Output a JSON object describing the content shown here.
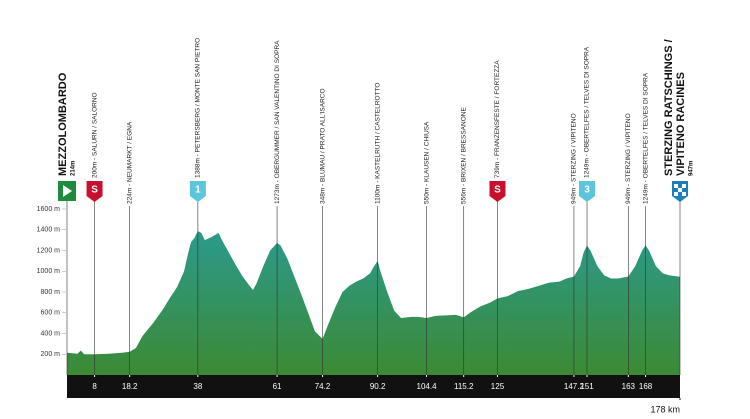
{
  "chart_data": {
    "type": "area",
    "x": [
      0,
      3,
      4,
      5,
      8,
      12,
      16,
      18.2,
      20,
      22,
      25,
      28,
      30,
      32,
      34,
      35,
      36,
      37,
      38,
      39,
      40,
      42,
      44,
      45,
      47,
      49,
      51,
      53,
      54,
      55,
      57,
      59,
      61,
      62,
      64,
      66,
      68,
      70,
      72,
      74.2,
      76,
      78,
      80,
      82,
      84,
      86,
      88,
      89,
      90.2,
      91,
      93,
      95,
      97,
      100,
      102,
      104.4,
      107,
      110,
      113,
      115.2,
      117,
      120,
      123,
      125,
      128,
      131,
      134,
      137,
      140,
      143,
      145,
      147.2,
      149,
      150,
      151,
      152,
      154,
      156,
      158,
      160,
      163,
      165,
      167,
      168,
      169,
      171,
      173,
      175,
      178
    ],
    "values": [
      214,
      205,
      235,
      200,
      200,
      205,
      215,
      224,
      260,
      380,
      500,
      640,
      750,
      850,
      1000,
      1150,
      1280,
      1320,
      1388,
      1370,
      1300,
      1330,
      1370,
      1300,
      1180,
      1060,
      950,
      860,
      820,
      880,
      1050,
      1200,
      1273,
      1250,
      1120,
      950,
      780,
      600,
      420,
      348,
      500,
      660,
      800,
      860,
      900,
      930,
      980,
      1040,
      1100,
      1000,
      800,
      620,
      550,
      560,
      560,
      550,
      570,
      575,
      580,
      556,
      600,
      660,
      700,
      739,
      760,
      810,
      830,
      860,
      890,
      900,
      930,
      949,
      1050,
      1180,
      1249,
      1200,
      1050,
      960,
      930,
      930,
      949,
      1050,
      1200,
      1249,
      1200,
      1050,
      980,
      960,
      947
    ],
    "xlim": [
      0,
      178
    ],
    "ylim": [
      0,
      1600
    ],
    "yticks": [
      {
        "value": 200,
        "label": "200 m"
      },
      {
        "value": 400,
        "label": "400 m"
      },
      {
        "value": 600,
        "label": "600 m"
      },
      {
        "value": 800,
        "label": "800 m"
      },
      {
        "value": 1000,
        "label": "1000 m"
      },
      {
        "value": 1200,
        "label": "1200 m"
      },
      {
        "value": 1400,
        "label": "1400 m"
      },
      {
        "value": 1600,
        "label": "1600 m"
      }
    ],
    "xticks": [
      8,
      18.2,
      38,
      61,
      74.2,
      90.2,
      104.4,
      115.2,
      125,
      147.2,
      151,
      163,
      168,
      {
        "value": 178,
        "label": "178 km"
      }
    ],
    "start": {
      "km": 0,
      "name": "MEZZOLOMBARDO",
      "elevation": "214m"
    },
    "finish": {
      "km": 178,
      "name": [
        "STERZING RATSCHINGS /",
        "VIPITENO RACINES"
      ],
      "elevation": "947m"
    },
    "waypoints": [
      {
        "km": 8,
        "label": "200m - SALURN / SALORNO",
        "icon": "S",
        "kind": "sprint"
      },
      {
        "km": 18.2,
        "label": "224m - NEUMARKT / EGNA"
      },
      {
        "km": 38,
        "label": "1388m - PETERSBERG / MONTE SAN PIETRO",
        "icon": "1",
        "kind": "kom"
      },
      {
        "km": 61,
        "label": "1273m - OBERGUMMER / SAN VALENTINO DI SOPRA"
      },
      {
        "km": 74.2,
        "label": "348m - BLUMAU / PRATO ALL'ISARCO"
      },
      {
        "km": 90.2,
        "label": "1100m - KASTELRUTH / CASTELROTTO"
      },
      {
        "km": 104.4,
        "label": "550m - KLAUSEN / CHIUSA"
      },
      {
        "km": 115.2,
        "label": "556m - BRIXEN / BRESSANONE"
      },
      {
        "km": 125,
        "label": "739m - FRANZENSFESTE / FORTEZZA",
        "icon": "S",
        "kind": "sprint"
      },
      {
        "km": 147.2,
        "label": "949m - STERZING / VIPITENO"
      },
      {
        "km": 151,
        "label": "1249m - OBERTELFES / TELVES DI SOPRA",
        "icon": "3",
        "kind": "kom"
      },
      {
        "km": 163,
        "label": "949m - STERZING / VIPITENO"
      },
      {
        "km": 168,
        "label": "1249m - OBERTELFES / TELVES DI SOPRA"
      }
    ]
  }
}
